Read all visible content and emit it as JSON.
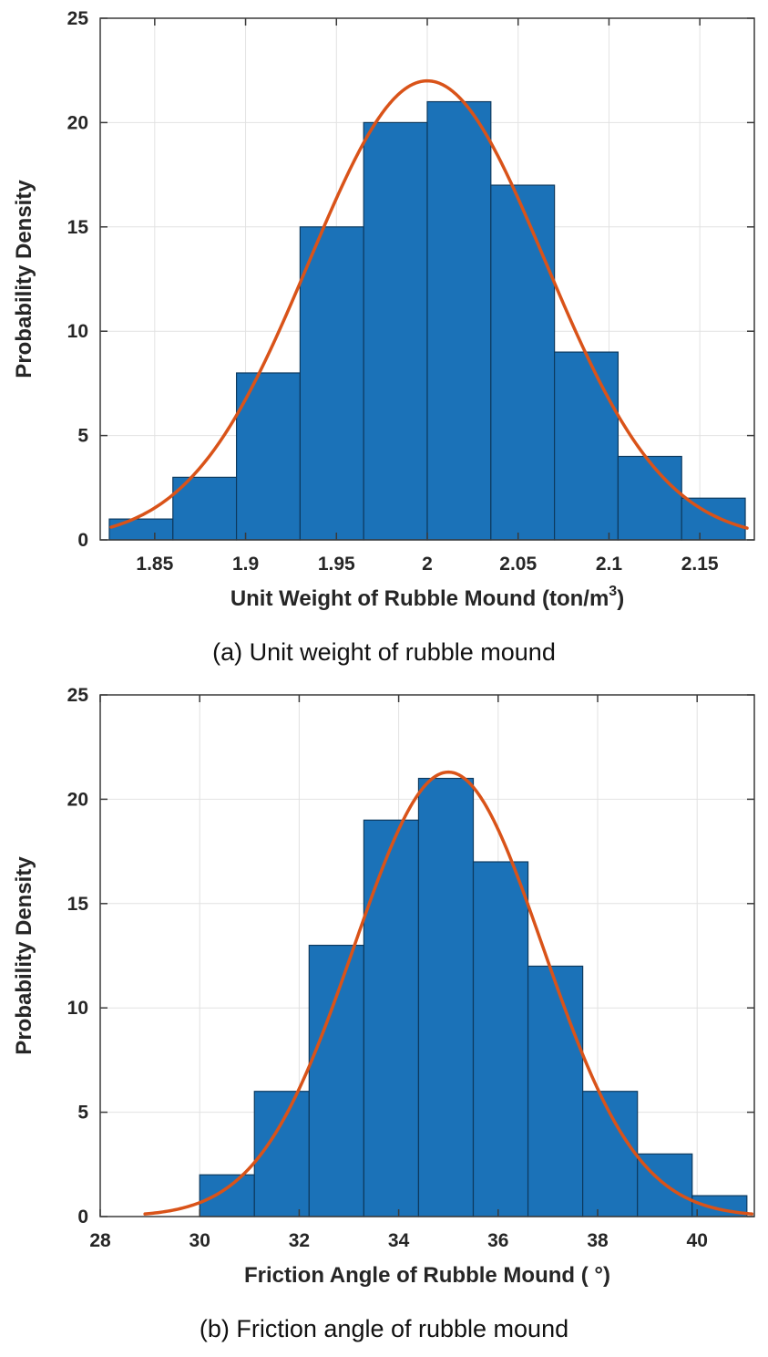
{
  "colors": {
    "bar_fill": "#1b72b8",
    "bar_edge": "#0d3a5f",
    "curve": "#d95319",
    "grid": "#e2e2e2",
    "axis": "#3a3a3a",
    "text": "#262626",
    "caption_text": "#111111"
  },
  "chart_data": [
    {
      "type": "bar",
      "subtype": "histogram-with-normal-fit",
      "caption": "(a) Unit weight of rubble mound",
      "ylabel": "Probability Density",
      "xlabel": {
        "main": "Unit Weight of Rubble Mound (ton/m",
        "sup": "3",
        "end": ")"
      },
      "xlim": [
        1.82,
        2.18
      ],
      "ylim": [
        0,
        25
      ],
      "xtick_values": [
        1.85,
        1.9,
        1.95,
        2.0,
        2.05,
        2.1,
        2.15
      ],
      "xtick_labels": [
        "1.85",
        "1.9",
        "1.95",
        "2",
        "2.05",
        "2.1",
        "2.15"
      ],
      "ytick_values": [
        0,
        5,
        10,
        15,
        20,
        25
      ],
      "ytick_labels": [
        "0",
        "5",
        "10",
        "15",
        "20",
        "25"
      ],
      "bin_edges": [
        1.825,
        1.86,
        1.895,
        1.93,
        1.965,
        2.0,
        2.035,
        2.07,
        2.105,
        2.14,
        2.175
      ],
      "bin_counts": [
        1,
        3,
        8,
        15,
        20,
        21,
        17,
        9,
        4,
        2
      ],
      "fit_curve": {
        "type": "normal",
        "mean": 2.0,
        "sigma": 0.065,
        "peak": 22,
        "x_start": 1.826,
        "x_end": 2.176
      },
      "grid": true,
      "legend": false
    },
    {
      "type": "bar",
      "subtype": "histogram-with-normal-fit",
      "caption": "(b) Friction angle of rubble mound",
      "ylabel": "Probability Density",
      "xlabel": {
        "main": "Friction Angle of Rubble Mound ( °)",
        "sup": "",
        "end": ""
      },
      "xlim": [
        28,
        41.15
      ],
      "ylim": [
        0,
        25
      ],
      "xtick_values": [
        28,
        30,
        32,
        34,
        36,
        38,
        40
      ],
      "xtick_labels": [
        "28",
        "30",
        "32",
        "34",
        "36",
        "38",
        "40"
      ],
      "ytick_values": [
        0,
        5,
        10,
        15,
        20,
        25
      ],
      "ytick_labels": [
        "0",
        "5",
        "10",
        "15",
        "20",
        "25"
      ],
      "bin_edges": [
        30,
        31.1,
        32.2,
        33.3,
        34.4,
        35.5,
        36.6,
        37.7,
        38.8,
        39.9,
        41
      ],
      "bin_counts": [
        2,
        6,
        13,
        19,
        21,
        17,
        12,
        6,
        3,
        1
      ],
      "fit_curve": {
        "type": "normal",
        "mean": 35,
        "sigma": 1.9,
        "peak": 21.3,
        "x_start": 28.9,
        "x_end": 41.1
      },
      "grid": true,
      "legend": false
    }
  ]
}
